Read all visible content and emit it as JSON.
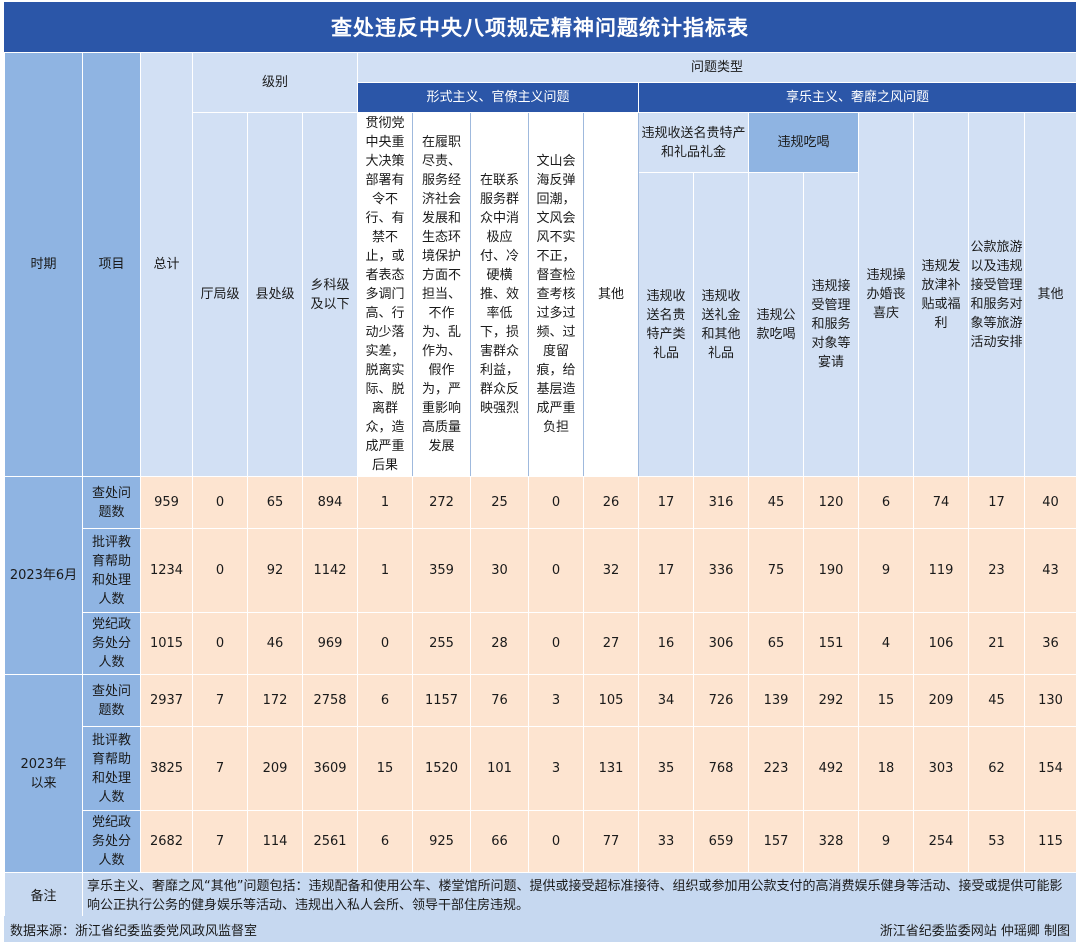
{
  "title": "查处违反中央八项规定精神问题统计指标表",
  "headers": {
    "period": "时期",
    "item": "项目",
    "total": "总计",
    "level": "级别",
    "problem_type": "问题类型",
    "formalism_group": "形式主义、官僚主义问题",
    "hedonism_group": "享乐主义、奢靡之风问题",
    "gift_group": "违规收送名贵特产和礼品礼金",
    "dining_group": "违规吃喝",
    "level_cols": [
      "厅局级",
      "县处级",
      "乡科级及以下"
    ],
    "formalism_cols": [
      "贯彻党中央重大决策部署有令不行、有禁不止，或者表态多调门高、行动少落实差，脱离实际、脱离群众，造成严重后果",
      "在履职尽责、服务经济社会发展和生态环境保护方面不担当、不作为、乱作为、假作为，严重影响高质量发展",
      "在联系服务群众中消极应付、冷硬横推、效率低下，损害群众利益，群众反映强烈",
      "文山会海反弹回潮，文风会风不实不正，督查检查考核过多过频、过度留痕，给基层造成严重负担",
      "其他"
    ],
    "gift_cols": [
      "违规收送名贵特产类礼品",
      "违规收送礼金和其他礼品"
    ],
    "dining_cols": [
      "违规公款吃喝",
      "违规接受管理和服务对象等宴请"
    ],
    "hedonism_other_cols": [
      "违规操办婚丧喜庆",
      "违规发放津补贴或福利",
      "公款旅游以及违规接受管理和服务对象等旅游活动安排",
      "其他"
    ]
  },
  "periods": [
    {
      "label": "2023年6月",
      "rows": [
        {
          "item": "查处问题数",
          "values": [
            "959",
            "0",
            "65",
            "894",
            "1",
            "272",
            "25",
            "0",
            "26",
            "17",
            "316",
            "45",
            "120",
            "6",
            "74",
            "17",
            "40"
          ]
        },
        {
          "item": "批评教育帮助和处理人数",
          "values": [
            "1234",
            "0",
            "92",
            "1142",
            "1",
            "359",
            "30",
            "0",
            "32",
            "17",
            "336",
            "75",
            "190",
            "9",
            "119",
            "23",
            "43"
          ]
        },
        {
          "item": "党纪政务处分人数",
          "values": [
            "1015",
            "0",
            "46",
            "969",
            "0",
            "255",
            "28",
            "0",
            "27",
            "16",
            "306",
            "65",
            "151",
            "4",
            "106",
            "21",
            "36"
          ]
        }
      ]
    },
    {
      "label": "2023年以来",
      "rows": [
        {
          "item": "查处问题数",
          "values": [
            "2937",
            "7",
            "172",
            "2758",
            "6",
            "1157",
            "76",
            "3",
            "105",
            "34",
            "726",
            "139",
            "292",
            "15",
            "209",
            "45",
            "130"
          ]
        },
        {
          "item": "批评教育帮助和处理人数",
          "values": [
            "3825",
            "7",
            "209",
            "3609",
            "15",
            "1520",
            "101",
            "3",
            "131",
            "35",
            "768",
            "223",
            "492",
            "18",
            "303",
            "62",
            "154"
          ]
        },
        {
          "item": "党纪政务处分人数",
          "values": [
            "2682",
            "7",
            "114",
            "2561",
            "6",
            "925",
            "66",
            "0",
            "77",
            "33",
            "659",
            "157",
            "328",
            "9",
            "254",
            "53",
            "115"
          ]
        }
      ]
    }
  ],
  "note": {
    "label": "备注",
    "text": "享乐主义、奢靡之风“其他”问题包括：违规配备和使用公车、楼堂馆所问题、提供或接受超标准接待、组织或参加用公款支付的高消费娱乐健身等活动、接受或提供可能影响公正执行公务的健身娱乐等活动、违规出入私人会所、领导干部住房违规。"
  },
  "footer": {
    "source": "数据来源：浙江省纪委监委党风政风监督室",
    "credit": "浙江省纪委监委网站 仲瑶卿 制图"
  }
}
